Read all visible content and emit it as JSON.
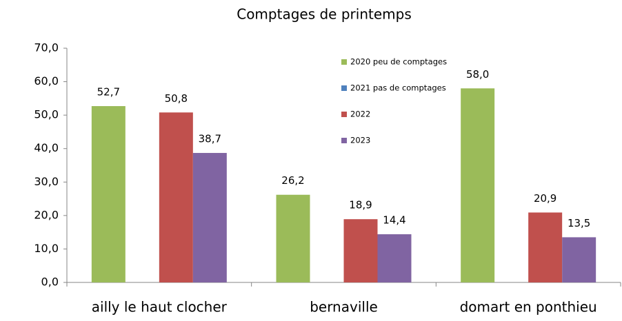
{
  "chart_data": {
    "type": "bar",
    "title": "Comptages de printemps",
    "categories": [
      "ailly le haut clocher",
      "bernaville",
      "domart en ponthieu"
    ],
    "series": [
      {
        "name": "2020 peu de comptages",
        "color": "#9bbb59",
        "values": [
          52.7,
          26.2,
          58.0
        ],
        "value_labels": [
          "52,7",
          "26,2",
          "58,0"
        ]
      },
      {
        "name": "2021 pas de comptages",
        "color": "#4f81bd",
        "values": [
          null,
          null,
          null
        ],
        "value_labels": [
          null,
          null,
          null
        ]
      },
      {
        "name": "2022",
        "color": "#c0504d",
        "values": [
          50.8,
          18.9,
          20.9
        ],
        "value_labels": [
          "50,8",
          "18,9",
          "20,9"
        ]
      },
      {
        "name": "2023",
        "color": "#8064a2",
        "values": [
          38.7,
          14.4,
          13.5
        ],
        "value_labels": [
          "38,7",
          "14,4",
          "13,5"
        ]
      }
    ],
    "ylim": [
      0,
      70
    ],
    "yticks": [
      {
        "value": 0,
        "label": "0,0"
      },
      {
        "value": 10,
        "label": "10,0"
      },
      {
        "value": 20,
        "label": "20,0"
      },
      {
        "value": 30,
        "label": "30,0"
      },
      {
        "value": 40,
        "label": "40,0"
      },
      {
        "value": 50,
        "label": "50,0"
      },
      {
        "value": 60,
        "label": "60,0"
      },
      {
        "value": 70,
        "label": "70,0"
      }
    ],
    "grid": false,
    "legend": "top-right"
  }
}
